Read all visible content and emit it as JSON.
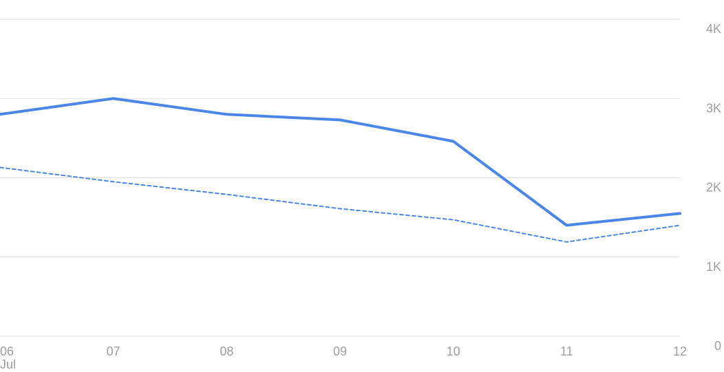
{
  "chart_data": {
    "type": "line",
    "x": [
      "06",
      "07",
      "08",
      "09",
      "10",
      "11",
      "12"
    ],
    "x_sublabel": "Jul",
    "y_ticks": [
      {
        "value": 0,
        "label": "0"
      },
      {
        "value": 1000,
        "label": "1K"
      },
      {
        "value": 2000,
        "label": "2K"
      },
      {
        "value": 3000,
        "label": "3K"
      },
      {
        "value": 4000,
        "label": "4K"
      }
    ],
    "ylim": [
      0,
      4000
    ],
    "grid": true,
    "y_axis_side": "right",
    "series": [
      {
        "values": [
          2800,
          3000,
          2800,
          2730,
          2460,
          1400,
          1550
        ],
        "color": "#4a86e8",
        "style": "solid"
      },
      {
        "values": [
          2130,
          1950,
          1790,
          1610,
          1470,
          1190,
          1400
        ],
        "color": "#4a86e8",
        "style": "dashed"
      }
    ],
    "title": "",
    "xlabel": "",
    "ylabel": ""
  }
}
